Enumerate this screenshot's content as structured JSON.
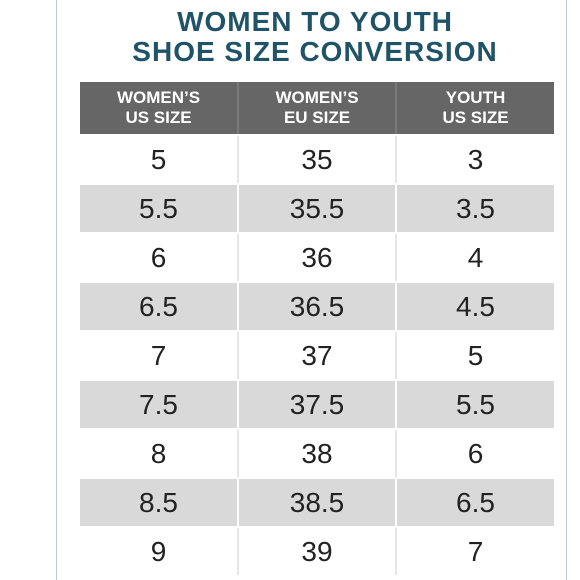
{
  "title": {
    "line1": "WOMEN TO YOUTH",
    "line2": "SHOE SIZE CONVERSION"
  },
  "table": {
    "headers": [
      [
        "WOMEN’S",
        "US SIZE"
      ],
      [
        "WOMEN’S",
        "EU SIZE"
      ],
      [
        "YOUTH",
        "US SIZE"
      ]
    ],
    "rows": [
      [
        "5",
        "35",
        "3"
      ],
      [
        "5.5",
        "35.5",
        "3.5"
      ],
      [
        "6",
        "36",
        "4"
      ],
      [
        "6.5",
        "36.5",
        "4.5"
      ],
      [
        "7",
        "37",
        "5"
      ],
      [
        "7.5",
        "37.5",
        "5.5"
      ],
      [
        "8",
        "38",
        "6"
      ],
      [
        "8.5",
        "38.5",
        "6.5"
      ],
      [
        "9",
        "39",
        "7"
      ]
    ]
  },
  "colors": {
    "title": "#1f5367",
    "header_bg": "#666666",
    "stripe_bg": "#d9d9d9"
  }
}
